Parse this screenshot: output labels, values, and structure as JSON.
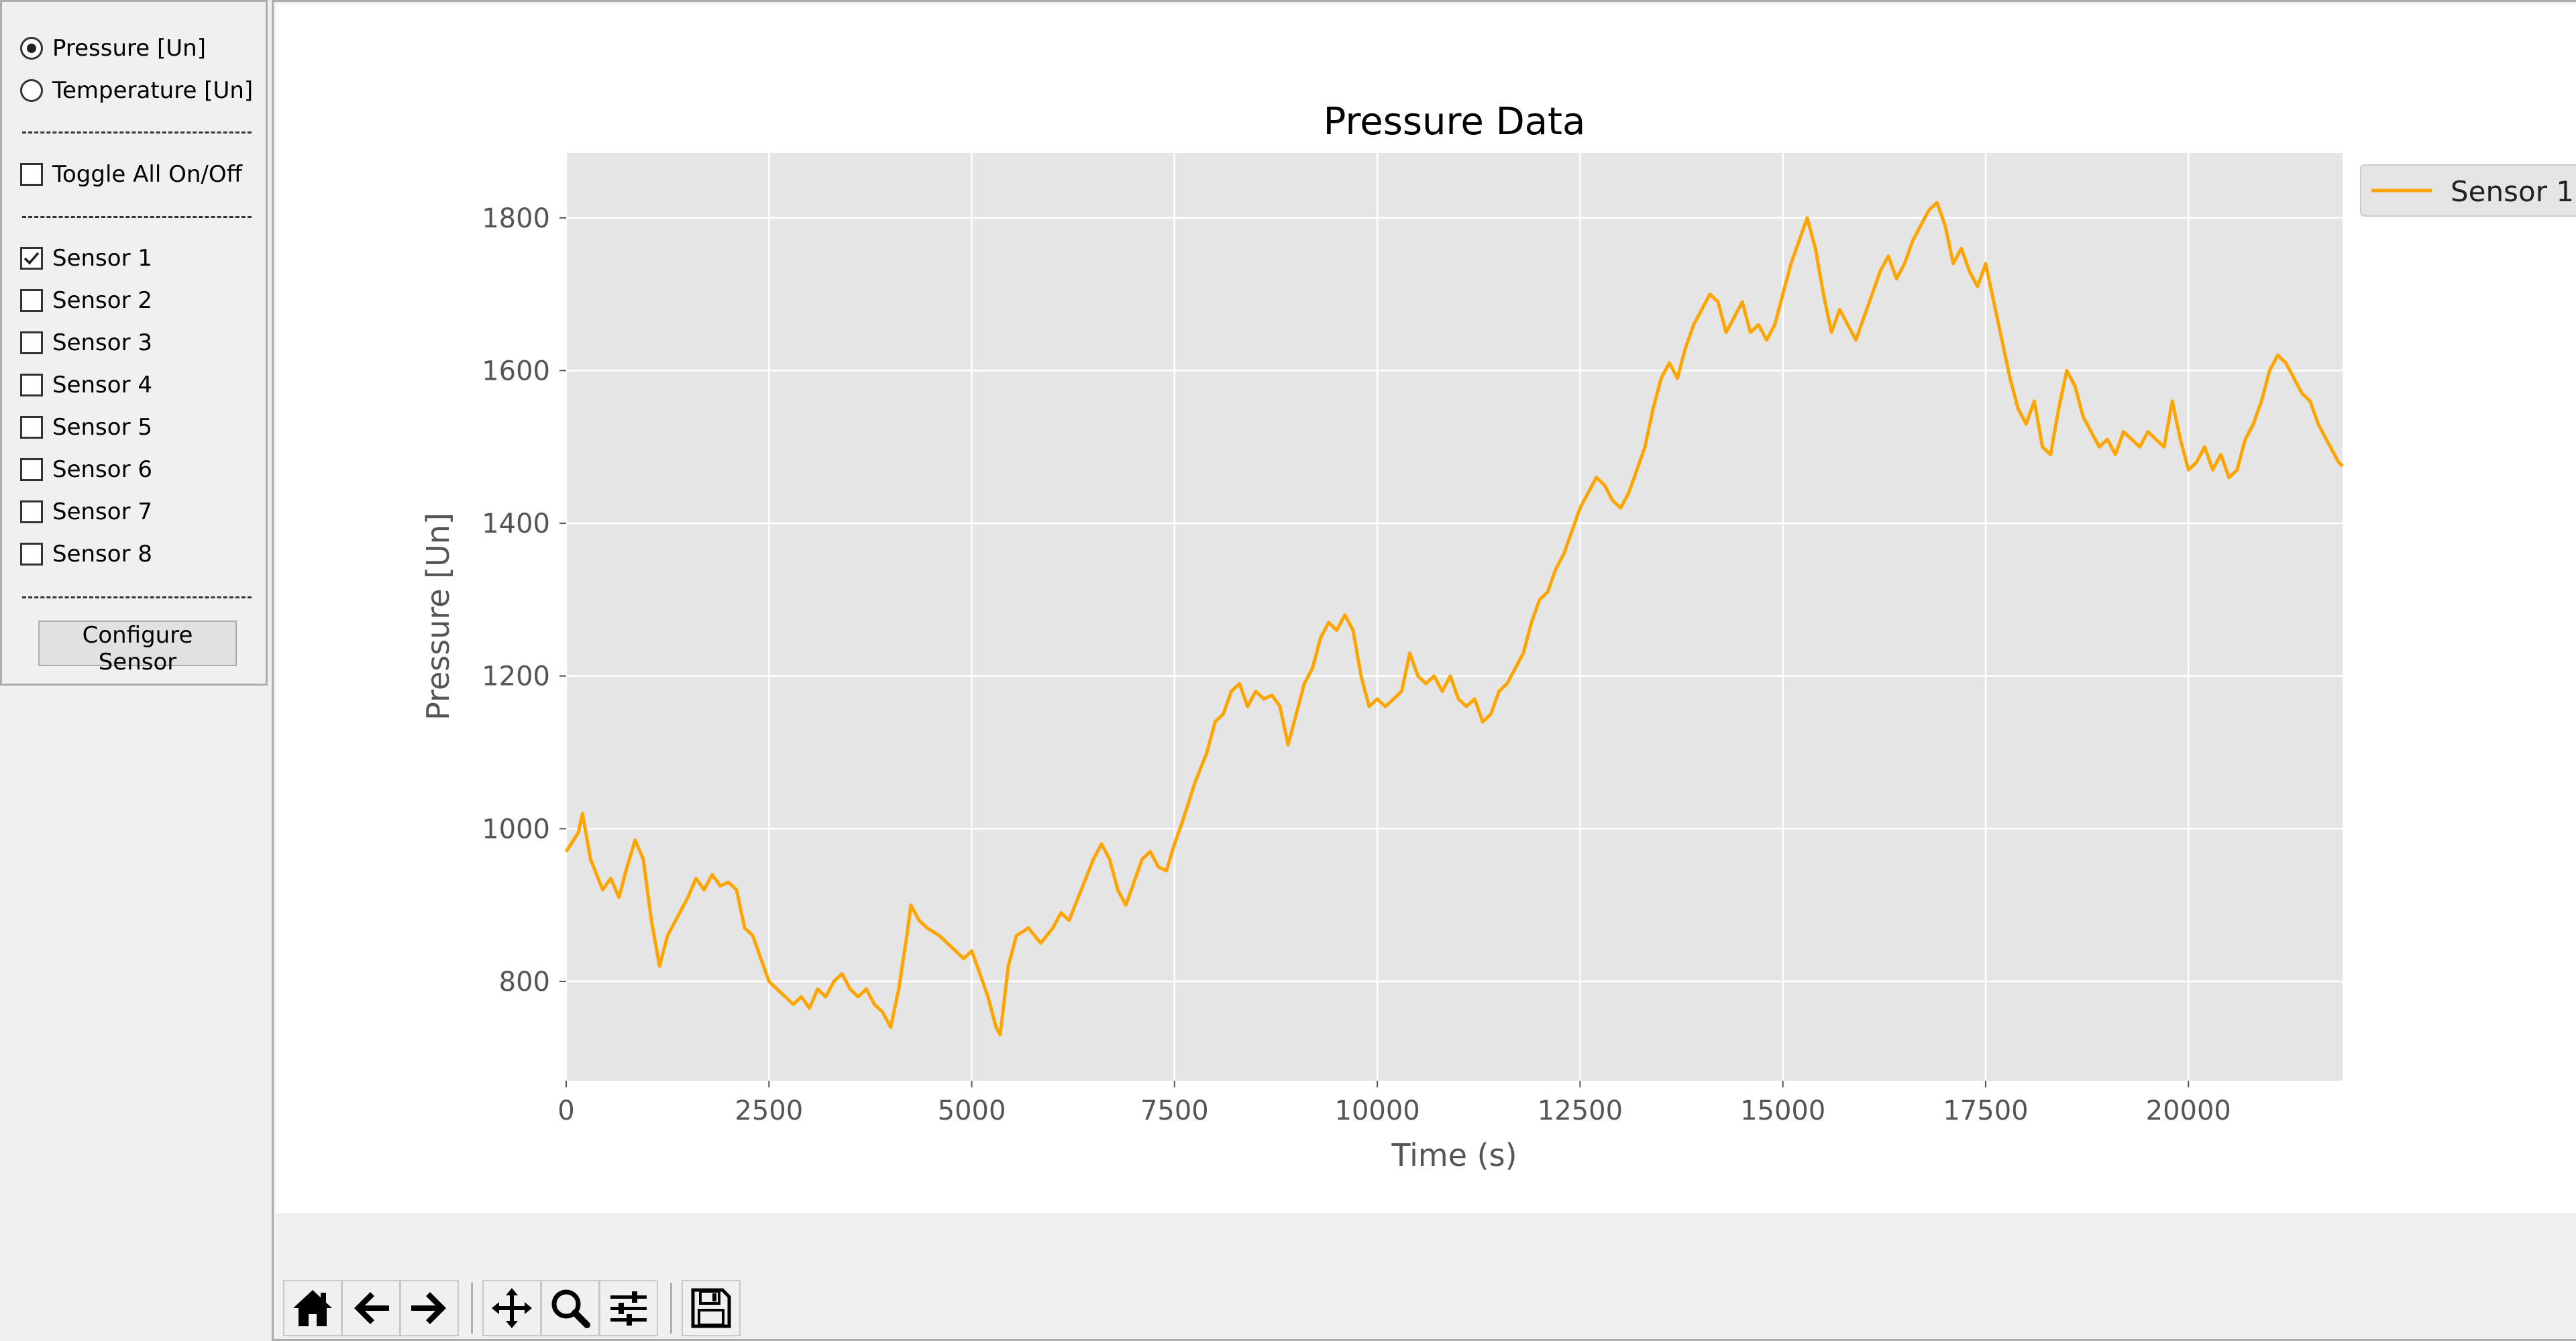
{
  "sidebar": {
    "measurement_options": [
      {
        "label": "Pressure [Un]",
        "selected": true
      },
      {
        "label": "Temperature [Un]",
        "selected": false
      }
    ],
    "separator_text": "-------------------------",
    "toggle_all": {
      "label": "Toggle All On/Off",
      "checked": false
    },
    "sensors": [
      {
        "label": "Sensor 1",
        "checked": true
      },
      {
        "label": "Sensor 2",
        "checked": false
      },
      {
        "label": "Sensor 3",
        "checked": false
      },
      {
        "label": "Sensor 4",
        "checked": false
      },
      {
        "label": "Sensor 5",
        "checked": false
      },
      {
        "label": "Sensor 6",
        "checked": false
      },
      {
        "label": "Sensor 7",
        "checked": false
      },
      {
        "label": "Sensor 8",
        "checked": false
      }
    ],
    "configure_button_label": "Configure Sensor"
  },
  "toolbar": {
    "buttons": [
      "home-icon",
      "back-arrow-icon",
      "forward-arrow-icon",
      "pan-icon",
      "zoom-icon",
      "subplots-config-icon",
      "save-icon"
    ]
  },
  "chart_data": {
    "type": "line",
    "title": "Pressure Data",
    "xlabel": "Time (s)",
    "ylabel": "Pressure [Un]",
    "xlim": [
      0,
      21900
    ],
    "ylim": [
      670,
      1885
    ],
    "xticks": [
      0,
      2500,
      5000,
      7500,
      10000,
      12500,
      15000,
      17500,
      20000
    ],
    "yticks": [
      800,
      1000,
      1200,
      1400,
      1600,
      1800
    ],
    "grid": true,
    "background": "#e5e5e5",
    "legend": {
      "position": "top-right-outside"
    },
    "series": [
      {
        "name": "Sensor 1",
        "color": "#ffa500",
        "points": [
          [
            0,
            970
          ],
          [
            150,
            995
          ],
          [
            200,
            1020
          ],
          [
            300,
            960
          ],
          [
            450,
            920
          ],
          [
            550,
            935
          ],
          [
            650,
            910
          ],
          [
            750,
            950
          ],
          [
            850,
            985
          ],
          [
            950,
            960
          ],
          [
            1050,
            880
          ],
          [
            1150,
            820
          ],
          [
            1250,
            860
          ],
          [
            1350,
            880
          ],
          [
            1500,
            910
          ],
          [
            1600,
            935
          ],
          [
            1700,
            920
          ],
          [
            1800,
            940
          ],
          [
            1900,
            925
          ],
          [
            2000,
            930
          ],
          [
            2100,
            920
          ],
          [
            2200,
            870
          ],
          [
            2300,
            860
          ],
          [
            2400,
            830
          ],
          [
            2500,
            800
          ],
          [
            2600,
            790
          ],
          [
            2700,
            780
          ],
          [
            2800,
            770
          ],
          [
            2900,
            780
          ],
          [
            3000,
            765
          ],
          [
            3100,
            790
          ],
          [
            3200,
            780
          ],
          [
            3300,
            800
          ],
          [
            3400,
            810
          ],
          [
            3500,
            790
          ],
          [
            3600,
            780
          ],
          [
            3700,
            790
          ],
          [
            3800,
            770
          ],
          [
            3900,
            760
          ],
          [
            4000,
            740
          ],
          [
            4100,
            790
          ],
          [
            4200,
            860
          ],
          [
            4250,
            900
          ],
          [
            4350,
            880
          ],
          [
            4450,
            870
          ],
          [
            4600,
            860
          ],
          [
            4700,
            850
          ],
          [
            4800,
            840
          ],
          [
            4900,
            830
          ],
          [
            5000,
            840
          ],
          [
            5100,
            810
          ],
          [
            5200,
            780
          ],
          [
            5300,
            740
          ],
          [
            5350,
            730
          ],
          [
            5450,
            820
          ],
          [
            5550,
            860
          ],
          [
            5700,
            870
          ],
          [
            5850,
            850
          ],
          [
            6000,
            870
          ],
          [
            6100,
            890
          ],
          [
            6200,
            880
          ],
          [
            6350,
            920
          ],
          [
            6500,
            960
          ],
          [
            6600,
            980
          ],
          [
            6700,
            960
          ],
          [
            6800,
            920
          ],
          [
            6900,
            900
          ],
          [
            7000,
            930
          ],
          [
            7100,
            960
          ],
          [
            7200,
            970
          ],
          [
            7300,
            950
          ],
          [
            7400,
            945
          ],
          [
            7500,
            980
          ],
          [
            7600,
            1010
          ],
          [
            7750,
            1060
          ],
          [
            7900,
            1100
          ],
          [
            8000,
            1140
          ],
          [
            8100,
            1150
          ],
          [
            8200,
            1180
          ],
          [
            8300,
            1190
          ],
          [
            8400,
            1160
          ],
          [
            8500,
            1180
          ],
          [
            8600,
            1170
          ],
          [
            8700,
            1175
          ],
          [
            8800,
            1160
          ],
          [
            8900,
            1110
          ],
          [
            9000,
            1150
          ],
          [
            9100,
            1190
          ],
          [
            9200,
            1210
          ],
          [
            9300,
            1250
          ],
          [
            9400,
            1270
          ],
          [
            9500,
            1260
          ],
          [
            9600,
            1280
          ],
          [
            9700,
            1260
          ],
          [
            9800,
            1200
          ],
          [
            9900,
            1160
          ],
          [
            10000,
            1170
          ],
          [
            10100,
            1160
          ],
          [
            10200,
            1170
          ],
          [
            10300,
            1180
          ],
          [
            10400,
            1230
          ],
          [
            10500,
            1200
          ],
          [
            10600,
            1190
          ],
          [
            10700,
            1200
          ],
          [
            10800,
            1180
          ],
          [
            10900,
            1200
          ],
          [
            11000,
            1170
          ],
          [
            11100,
            1160
          ],
          [
            11200,
            1170
          ],
          [
            11300,
            1140
          ],
          [
            11400,
            1150
          ],
          [
            11500,
            1180
          ],
          [
            11600,
            1190
          ],
          [
            11700,
            1210
          ],
          [
            11800,
            1230
          ],
          [
            11900,
            1270
          ],
          [
            12000,
            1300
          ],
          [
            12100,
            1310
          ],
          [
            12200,
            1340
          ],
          [
            12300,
            1360
          ],
          [
            12400,
            1390
          ],
          [
            12500,
            1420
          ],
          [
            12600,
            1440
          ],
          [
            12700,
            1460
          ],
          [
            12800,
            1450
          ],
          [
            12900,
            1430
          ],
          [
            13000,
            1420
          ],
          [
            13100,
            1440
          ],
          [
            13200,
            1470
          ],
          [
            13300,
            1500
          ],
          [
            13400,
            1550
          ],
          [
            13500,
            1590
          ],
          [
            13600,
            1610
          ],
          [
            13700,
            1590
          ],
          [
            13800,
            1630
          ],
          [
            13900,
            1660
          ],
          [
            14000,
            1680
          ],
          [
            14100,
            1700
          ],
          [
            14200,
            1690
          ],
          [
            14300,
            1650
          ],
          [
            14400,
            1670
          ],
          [
            14500,
            1690
          ],
          [
            14600,
            1650
          ],
          [
            14700,
            1660
          ],
          [
            14800,
            1640
          ],
          [
            14900,
            1660
          ],
          [
            15000,
            1700
          ],
          [
            15100,
            1740
          ],
          [
            15200,
            1770
          ],
          [
            15300,
            1800
          ],
          [
            15400,
            1760
          ],
          [
            15500,
            1700
          ],
          [
            15600,
            1650
          ],
          [
            15700,
            1680
          ],
          [
            15800,
            1660
          ],
          [
            15900,
            1640
          ],
          [
            16000,
            1670
          ],
          [
            16100,
            1700
          ],
          [
            16200,
            1730
          ],
          [
            16300,
            1750
          ],
          [
            16400,
            1720
          ],
          [
            16500,
            1740
          ],
          [
            16600,
            1770
          ],
          [
            16700,
            1790
          ],
          [
            16800,
            1810
          ],
          [
            16900,
            1820
          ],
          [
            17000,
            1790
          ],
          [
            17100,
            1740
          ],
          [
            17200,
            1760
          ],
          [
            17300,
            1730
          ],
          [
            17400,
            1710
          ],
          [
            17500,
            1740
          ],
          [
            17600,
            1690
          ],
          [
            17700,
            1640
          ],
          [
            17800,
            1590
          ],
          [
            17900,
            1550
          ],
          [
            18000,
            1530
          ],
          [
            18100,
            1560
          ],
          [
            18200,
            1500
          ],
          [
            18300,
            1490
          ],
          [
            18400,
            1550
          ],
          [
            18500,
            1600
          ],
          [
            18600,
            1580
          ],
          [
            18700,
            1540
          ],
          [
            18800,
            1520
          ],
          [
            18900,
            1500
          ],
          [
            19000,
            1510
          ],
          [
            19100,
            1490
          ],
          [
            19200,
            1520
          ],
          [
            19300,
            1510
          ],
          [
            19400,
            1500
          ],
          [
            19500,
            1520
          ],
          [
            19600,
            1510
          ],
          [
            19700,
            1500
          ],
          [
            19800,
            1560
          ],
          [
            19900,
            1510
          ],
          [
            20000,
            1470
          ],
          [
            20100,
            1480
          ],
          [
            20200,
            1500
          ],
          [
            20300,
            1470
          ],
          [
            20400,
            1490
          ],
          [
            20500,
            1460
          ],
          [
            20600,
            1470
          ],
          [
            20700,
            1510
          ],
          [
            20800,
            1530
          ],
          [
            20900,
            1560
          ],
          [
            21000,
            1600
          ],
          [
            21100,
            1620
          ],
          [
            21200,
            1610
          ],
          [
            21300,
            1590
          ],
          [
            21400,
            1570
          ],
          [
            21500,
            1560
          ],
          [
            21600,
            1530
          ],
          [
            21700,
            1510
          ],
          [
            21800,
            1490
          ],
          [
            21850,
            1480
          ],
          [
            21900,
            1475
          ]
        ]
      }
    ]
  }
}
